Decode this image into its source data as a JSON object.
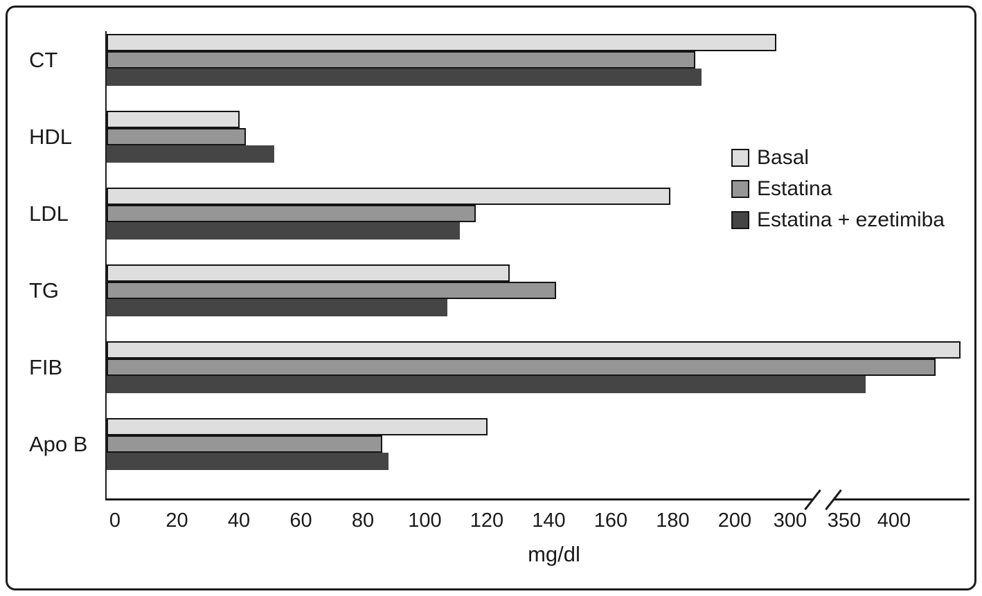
{
  "figure": {
    "xlabel": "mg/dl"
  },
  "chart_data": {
    "type": "bar",
    "orientation": "horizontal",
    "title": "",
    "xlabel": "mg/dl",
    "ylabel": "",
    "categories": [
      "CT",
      "HDL",
      "LDL",
      "TG",
      "FIB",
      "Apo B"
    ],
    "series": [
      {
        "name": "Basal",
        "color": "#dedede",
        "values": [
          290,
          43,
          182,
          130,
          475,
          123
        ]
      },
      {
        "name": "Estatina",
        "color": "#969696",
        "values": [
          190,
          45,
          119,
          145,
          450,
          89
        ]
      },
      {
        "name": "Estatina + ezetimiba",
        "color": "#454545",
        "values": [
          192,
          54,
          114,
          110,
          380,
          91
        ]
      }
    ],
    "x_ticks": [
      0,
      20,
      40,
      60,
      80,
      100,
      120,
      140,
      160,
      180,
      200,
      300,
      350,
      400
    ],
    "axis_break": {
      "between": [
        300,
        350
      ],
      "style": "double-slash"
    },
    "grid": false,
    "legend_position": "right-middle",
    "axis_color": "#1c1c1c"
  }
}
